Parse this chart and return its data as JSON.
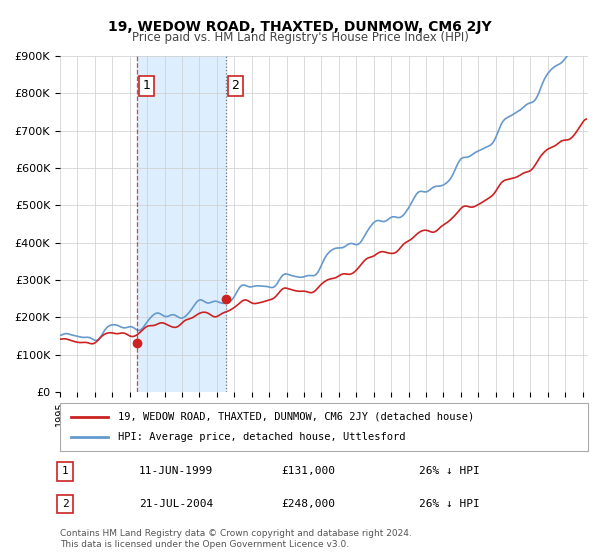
{
  "title": "19, WEDOW ROAD, THAXTED, DUNMOW, CM6 2JY",
  "subtitle": "Price paid vs. HM Land Registry's House Price Index (HPI)",
  "ylabel": "",
  "ylim": [
    0,
    900000
  ],
  "yticks": [
    0,
    100000,
    200000,
    300000,
    400000,
    500000,
    600000,
    700000,
    800000,
    900000
  ],
  "ytick_labels": [
    "£0",
    "£100K",
    "£200K",
    "£300K",
    "£400K",
    "£500K",
    "£600K",
    "£700K",
    "£800K",
    "£900K"
  ],
  "xlim_start": 1995.0,
  "xlim_end": 2025.3,
  "sale1_date": 1999.44,
  "sale1_price": 131000,
  "sale1_label": "11-JUN-1999",
  "sale1_amount": "£131,000",
  "sale1_hpi": "26% ↓ HPI",
  "sale2_date": 2004.54,
  "sale2_price": 248000,
  "sale2_label": "21-JUL-2004",
  "sale2_amount": "£248,000",
  "sale2_hpi": "26% ↓ HPI",
  "hpi_color": "#6699cc",
  "price_color": "#cc2222",
  "shade_color": "#ddeeff",
  "legend1_label": "19, WEDOW ROAD, THAXTED, DUNMOW, CM6 2JY (detached house)",
  "legend2_label": "HPI: Average price, detached house, Uttlesford",
  "footer": "Contains HM Land Registry data © Crown copyright and database right 2024.\nThis data is licensed under the Open Government Licence v3.0.",
  "background_color": "#f8f8f8"
}
